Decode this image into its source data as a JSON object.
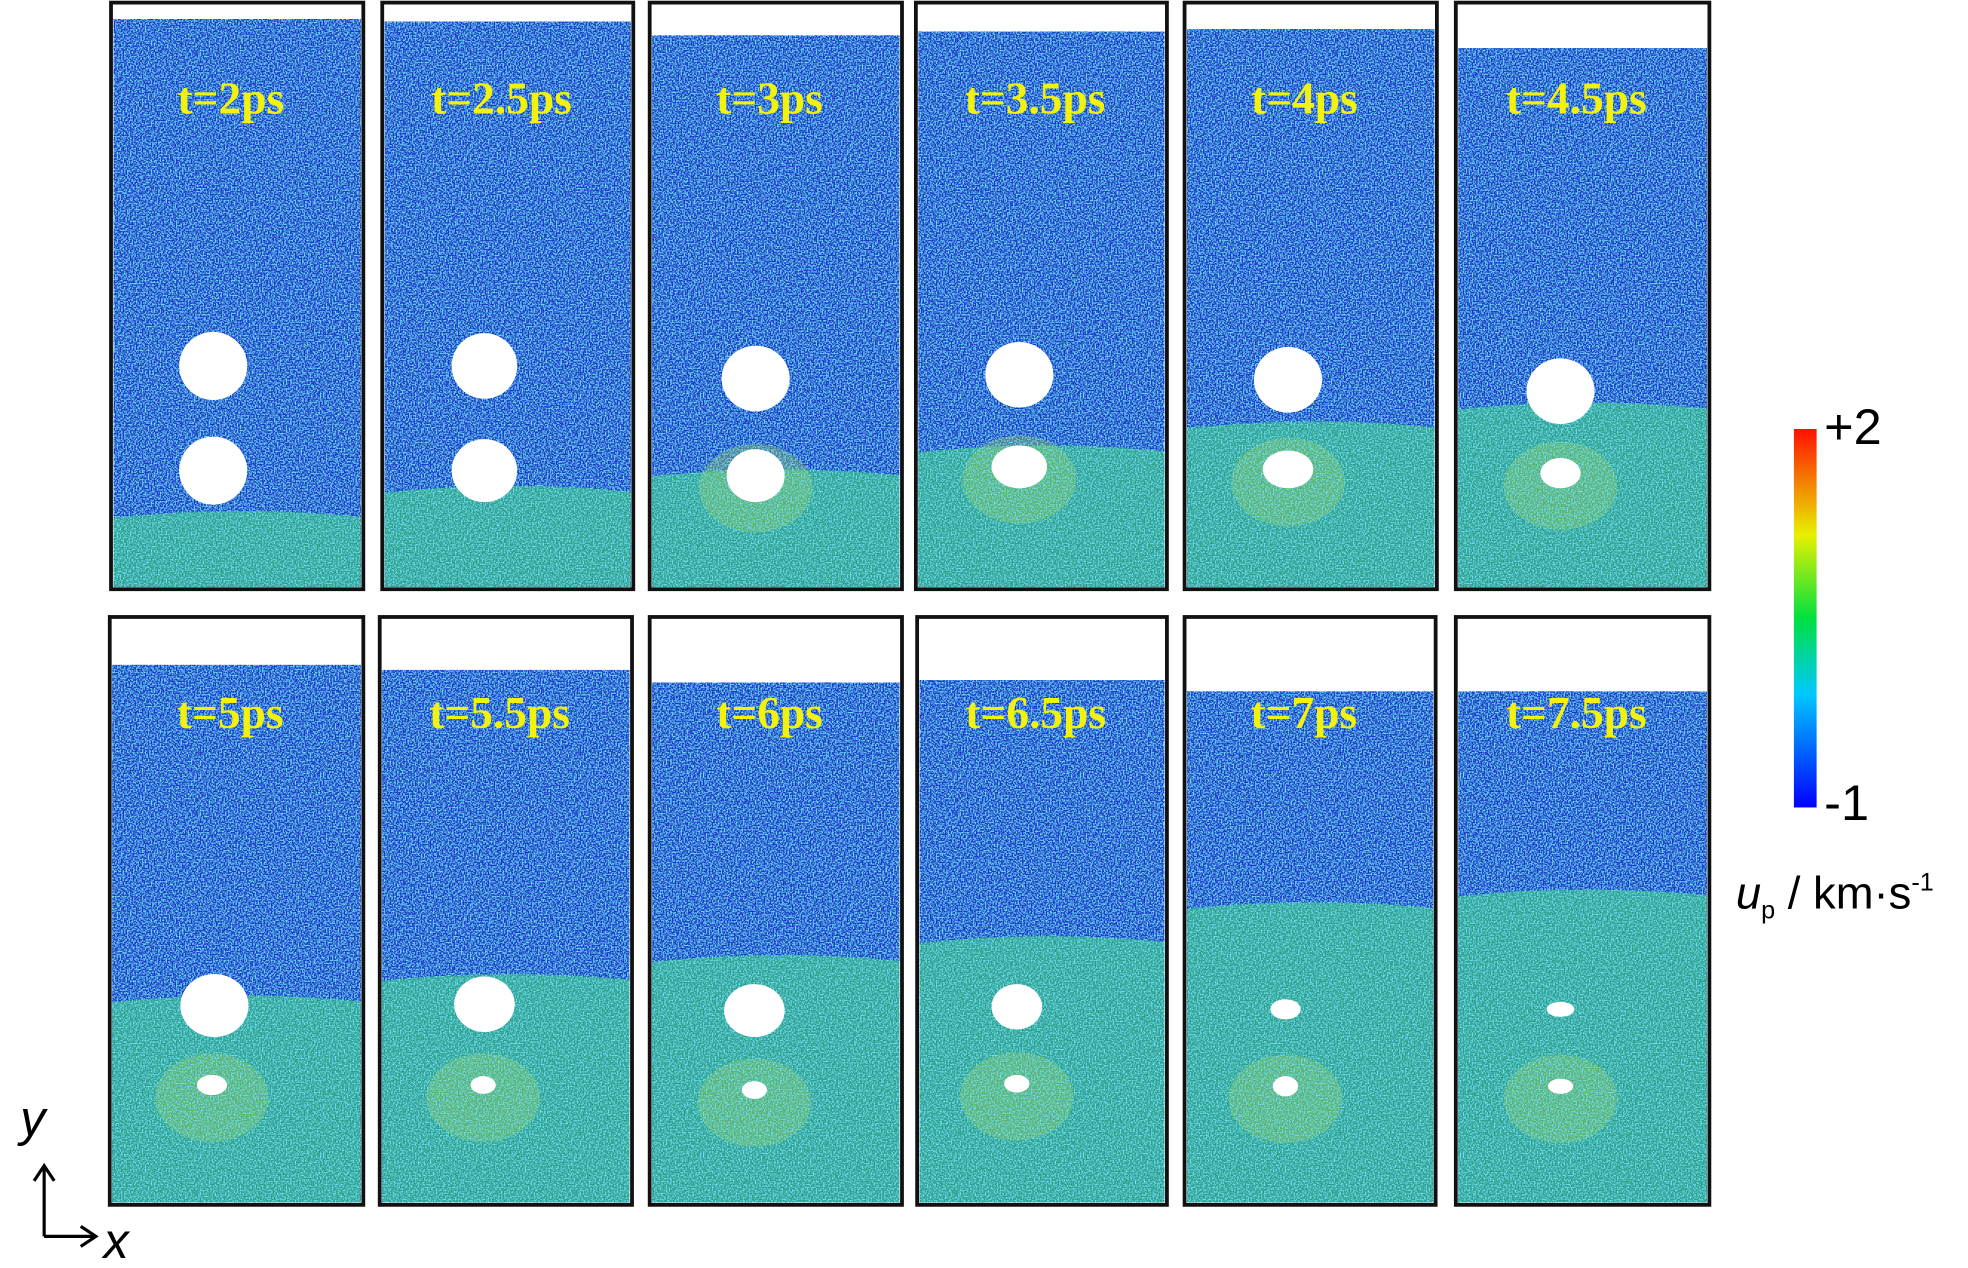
{
  "panels": [
    {
      "label": "t=2ps"
    },
    {
      "label": "t=2.5ps"
    },
    {
      "label": "t=3ps"
    },
    {
      "label": "t=3.5ps"
    },
    {
      "label": "t=4ps"
    },
    {
      "label": "t=4.5ps"
    },
    {
      "label": "t=5ps"
    },
    {
      "label": "t=5.5ps"
    },
    {
      "label": "t=6ps"
    },
    {
      "label": "t=6.5ps"
    },
    {
      "label": "t=7ps"
    },
    {
      "label": "t=7.5ps"
    }
  ],
  "colorbar": {
    "max": "+2",
    "min": "-1",
    "label": {
      "symbol": "u",
      "subscript": "p",
      "unit": " / km·s",
      "superscript": "-1"
    }
  },
  "axes": {
    "y": "y",
    "x": "x"
  }
}
